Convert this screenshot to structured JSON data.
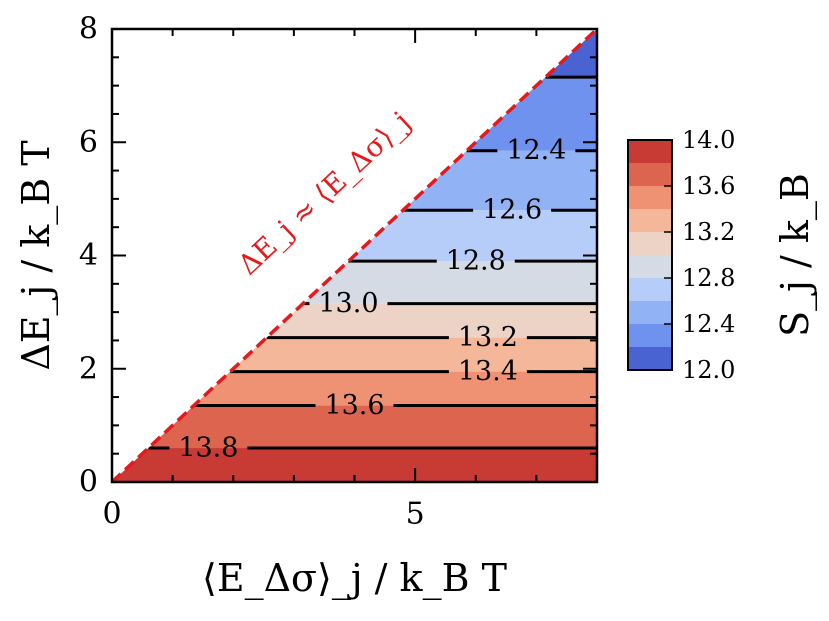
{
  "chart_data": {
    "type": "heatmap",
    "subtype": "filled-contour",
    "xlabel": "⟨E_Δσ⟩_j / k_B T",
    "ylabel": "ΔE_j / k_B T",
    "xlim": [
      0,
      8
    ],
    "ylim": [
      0,
      8
    ],
    "x_ticks": [
      0,
      5
    ],
    "y_ticks": [
      0,
      2,
      4,
      6,
      8
    ],
    "grid": false,
    "masked_region": "y > x",
    "levels": [
      12.0,
      12.25,
      12.5,
      12.75,
      13.0,
      13.25,
      13.5,
      13.75,
      14.0
    ],
    "band_colors": [
      "#4a63d3",
      "#6f92ee",
      "#92b2f6",
      "#b7cdf9",
      "#d5dbe5",
      "#ecd3c5",
      "#f5b79a",
      "#ef9273",
      "#dd654f",
      "#c83a34"
    ],
    "contours": [
      {
        "label": "13.8",
        "y": 0.6
      },
      {
        "label": "13.6",
        "y": 1.35
      },
      {
        "label": "13.4",
        "y": 1.95
      },
      {
        "label": "13.2",
        "y": 2.55
      },
      {
        "label": "13.0",
        "y": 3.15
      },
      {
        "label": "12.8",
        "y": 3.9
      },
      {
        "label": "12.6",
        "y": 4.8
      },
      {
        "label": "12.4",
        "y": 5.85
      },
      {
        "label": "",
        "y": 7.15
      }
    ],
    "diagonal_annotation": "ΔE_j ≈ ⟨E_Δσ⟩_j",
    "colorbar": {
      "label": "S_j / k_B",
      "ticks": [
        "14.0",
        "13.6",
        "13.2",
        "12.8",
        "12.4",
        "12.0"
      ],
      "range": [
        12.0,
        14.0
      ]
    }
  }
}
